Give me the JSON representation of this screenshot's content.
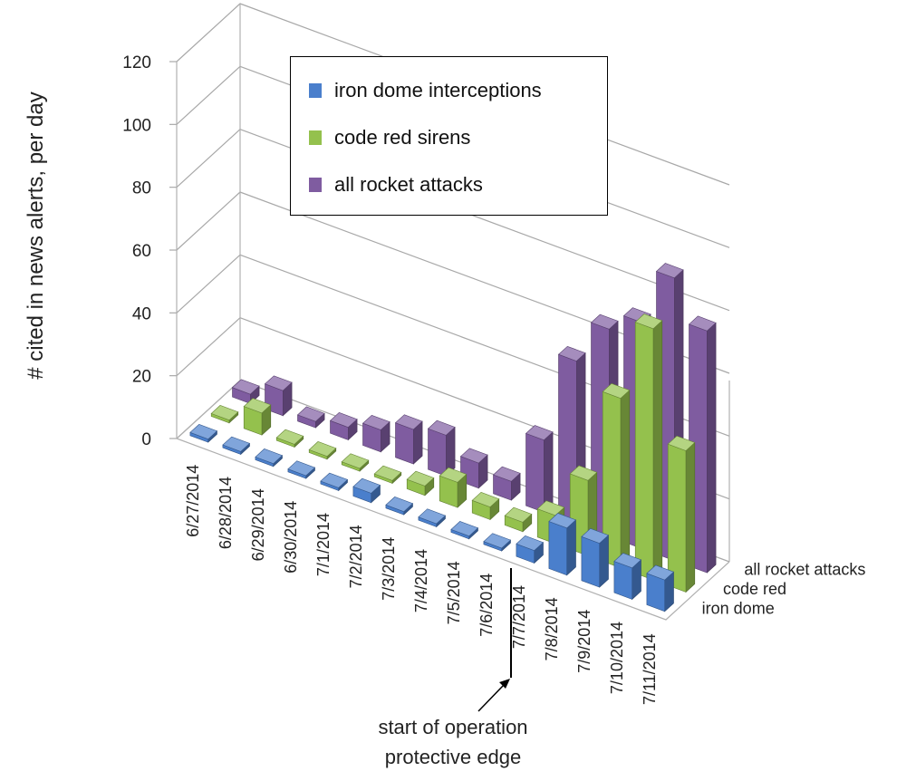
{
  "chart_data": {
    "type": "bar",
    "dimension": "3d",
    "ylabel": "# cited in news alerts, per day",
    "ylim": [
      0,
      120
    ],
    "yticks": [
      "0",
      "20",
      "40",
      "60",
      "80",
      "100",
      "120"
    ],
    "categories": [
      "6/27/2014",
      "6/28/2014",
      "6/29/2014",
      "6/30/2014",
      "7/1/2014",
      "7/2/2014",
      "7/3/2014",
      "7/4/2014",
      "7/5/2014",
      "7/6/2014",
      "7/7/2014",
      "7/8/2014",
      "7/9/2014",
      "7/10/2014",
      "7/11/2014"
    ],
    "depth_labels": [
      "iron dome",
      "code red",
      "all rocket attacks"
    ],
    "series": [
      {
        "name": "iron dome interceptions",
        "color": "#4a7fcc",
        "values": [
          1,
          0,
          0,
          0,
          0,
          3,
          1,
          1,
          0,
          0,
          4,
          15,
          14,
          10,
          10
        ]
      },
      {
        "name": "code red sirens",
        "color": "#94c14d",
        "values": [
          0,
          7,
          0,
          0,
          0,
          0,
          3,
          8,
          4,
          3,
          9,
          24,
          54,
          80,
          45
        ]
      },
      {
        "name": "all rocket attacks",
        "color": "#7f5ca0",
        "values": [
          3,
          8,
          2,
          4,
          7,
          11,
          13,
          8,
          6,
          23,
          52,
          66,
          72,
          90,
          77
        ]
      }
    ],
    "legend_position": "top-center",
    "grid": true
  },
  "annotation": {
    "line1": "start of operation",
    "line2": "protective edge"
  }
}
